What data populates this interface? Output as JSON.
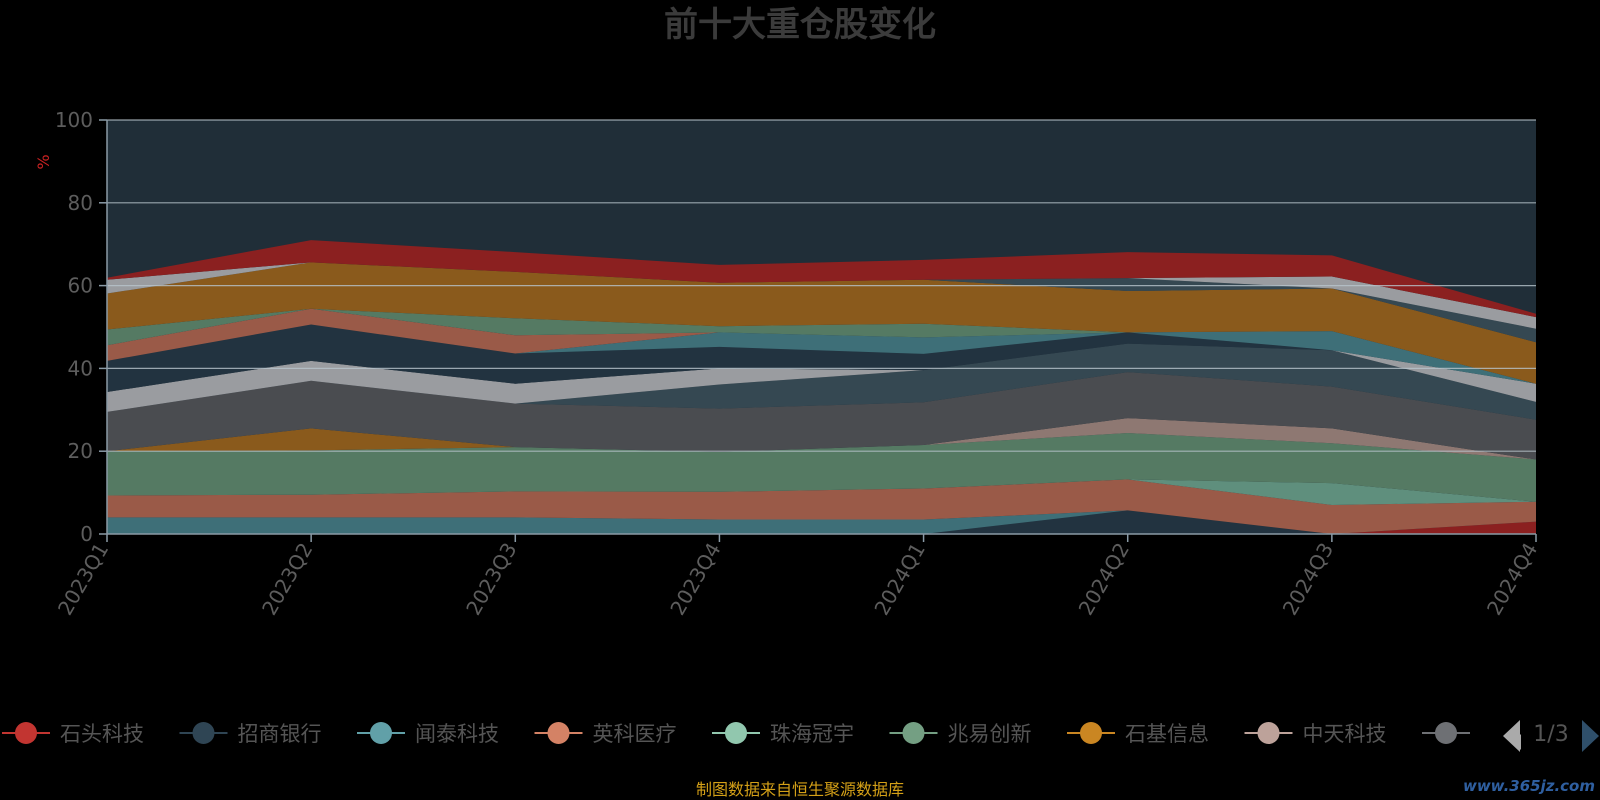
{
  "source_note": "制图数据来自恒生聚源数据库",
  "watermark": "www.365jz.com",
  "legend_pager": "1/3",
  "chart_data": {
    "type": "area",
    "stacked": true,
    "title": "前十大重仓股变化",
    "ylabel": "%",
    "ylim": [
      0,
      100
    ],
    "yticks": [
      0,
      20,
      40,
      60,
      80,
      100
    ],
    "grid": true,
    "legend_position": "bottom",
    "categories": [
      "2023Q1",
      "2023Q2",
      "2023Q3",
      "2023Q4",
      "2024Q1",
      "2024Q2",
      "2024Q3",
      "2024Q4"
    ],
    "series": [
      {
        "color": "#223340",
        "values": [
          0,
          0,
          0,
          0,
          0,
          5.7,
          0,
          0
        ]
      },
      {
        "color": "#8b2020",
        "values": [
          0,
          0,
          0,
          0,
          0,
          0,
          0,
          3
        ]
      },
      {
        "color": "#3e6f78",
        "values": [
          4,
          4,
          4,
          3.5,
          3.5,
          0,
          0,
          0
        ]
      },
      {
        "color": "#9a5a48",
        "values": [
          5.3,
          5.5,
          6.3,
          6.7,
          7.5,
          7.5,
          7,
          4.8
        ]
      },
      {
        "color": "#5f8f7d",
        "values": [
          0,
          0,
          0,
          0,
          0,
          0,
          5.3,
          0
        ]
      },
      {
        "color": "#557a63",
        "values": [
          10.7,
          10.7,
          10.7,
          9.6,
          10.5,
          11.2,
          9.6,
          10.2
        ]
      },
      {
        "color": "#8a5a1c",
        "values": [
          0,
          5.3,
          0,
          0,
          0,
          0,
          0,
          0
        ]
      },
      {
        "color": "#8e7872",
        "values": [
          0,
          0,
          0,
          0,
          0,
          3.6,
          3.6,
          0
        ]
      },
      {
        "color": "#4a4c50",
        "values": [
          9.5,
          11.5,
          10.5,
          10.5,
          10.3,
          11.1,
          10.1,
          9.6
        ]
      },
      {
        "color": "#354852",
        "values": [
          0,
          0,
          0,
          5.8,
          7.8,
          6.9,
          8.8,
          4.3
        ]
      },
      {
        "color": "#9a9ca0",
        "values": [
          4.8,
          4.8,
          4.8,
          3.9,
          0,
          0,
          0,
          4.4
        ]
      },
      {
        "color": "#223340",
        "values": [
          7.5,
          8.8,
          7.3,
          5.2,
          3.9,
          2.7,
          0,
          0
        ]
      },
      {
        "color": "#3e6f78",
        "values": [
          0,
          0,
          0,
          3.5,
          4,
          0,
          4.6,
          0
        ]
      },
      {
        "color": "#9a5a48",
        "values": [
          3.8,
          3.8,
          4.4,
          0,
          0,
          0,
          0,
          0
        ]
      },
      {
        "color": "#557a63",
        "values": [
          3.8,
          0,
          4.1,
          1.5,
          3.3,
          0,
          0,
          0
        ]
      },
      {
        "color": "#8a5a1c",
        "values": [
          8.7,
          11.2,
          11.2,
          10.5,
          10.6,
          10,
          10.3,
          10
        ]
      },
      {
        "color": "#354852",
        "values": [
          0,
          0,
          0,
          0,
          0,
          3.1,
          0,
          3.3
        ]
      },
      {
        "color": "#9a9ca0",
        "values": [
          3.3,
          0,
          0,
          0,
          0,
          0,
          2.9,
          2.8
        ]
      },
      {
        "color": "#8b2020",
        "values": [
          0.5,
          5.4,
          4.8,
          4.3,
          4.8,
          6.3,
          5.1,
          0.8
        ]
      }
    ],
    "legend": [
      {
        "name": "石头科技",
        "color": "#c23531"
      },
      {
        "name": "招商银行",
        "color": "#2f4554"
      },
      {
        "name": "闻泰科技",
        "color": "#61a0a8"
      },
      {
        "name": "英科医疗",
        "color": "#d48265"
      },
      {
        "name": "珠海冠宇",
        "color": "#91c7ae"
      },
      {
        "name": "兆易创新",
        "color": "#749f83"
      },
      {
        "name": "石基信息",
        "color": "#ca8622"
      },
      {
        "name": "中天科技",
        "color": "#bda29a"
      },
      {
        "name": "",
        "color": "#6e7074"
      }
    ]
  }
}
